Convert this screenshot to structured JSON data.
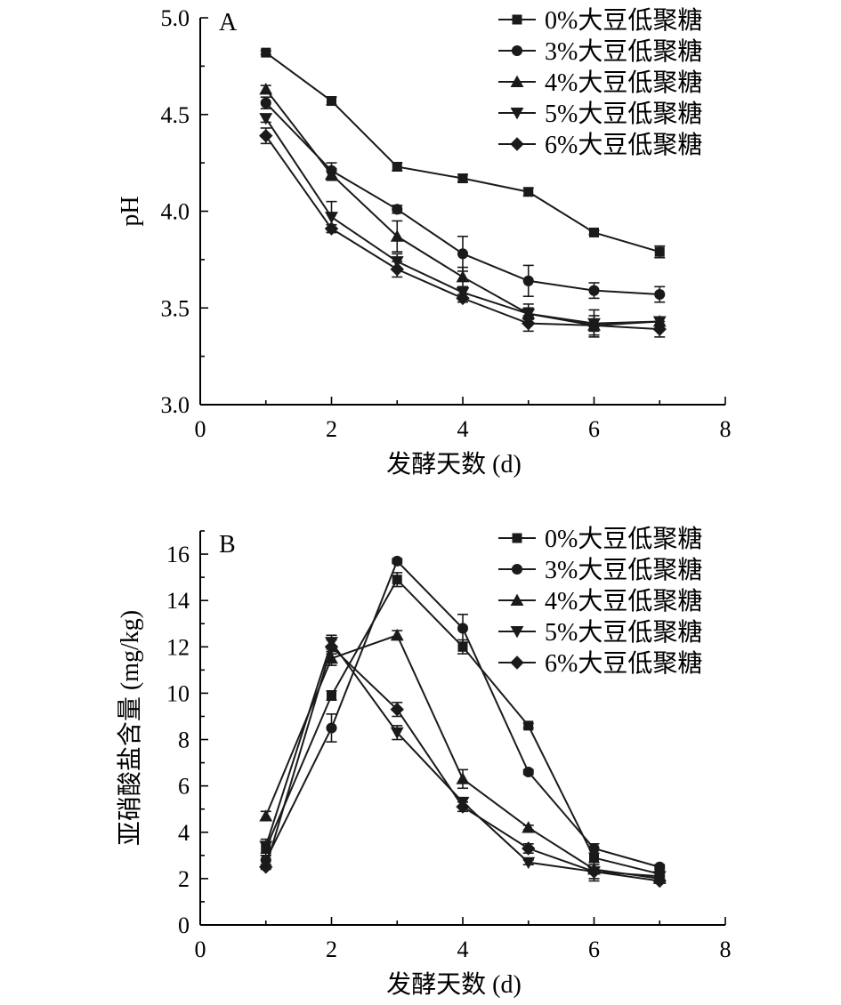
{
  "chart_data": [
    {
      "type": "line",
      "panel_label": "A",
      "xlabel": "发酵天数 (d)",
      "ylabel": "pH",
      "xlim": [
        0,
        8
      ],
      "ylim": [
        3.0,
        5.0
      ],
      "xticks": [
        0,
        2,
        4,
        6,
        8
      ],
      "yticks": [
        3.0,
        3.5,
        4.0,
        4.5,
        5.0
      ],
      "ytick_labels": [
        "3.0",
        "3.5",
        "4.0",
        "4.5",
        "5.0"
      ],
      "grid": false,
      "legend_position": "top-right",
      "x": [
        1,
        2,
        3,
        4,
        5,
        6,
        7
      ],
      "series": [
        {
          "name": "0%大豆低聚糖",
          "marker": "square",
          "values": [
            4.82,
            4.57,
            4.23,
            4.17,
            4.1,
            3.89,
            3.79
          ],
          "errors": [
            0.01,
            0.02,
            0.02,
            0.02,
            0.02,
            0.01,
            0.03
          ]
        },
        {
          "name": "3%大豆低聚糖",
          "marker": "circle",
          "values": [
            4.56,
            4.21,
            4.01,
            3.78,
            3.64,
            3.59,
            3.57
          ],
          "errors": [
            0.03,
            0.04,
            0.02,
            0.09,
            0.08,
            0.04,
            0.04
          ]
        },
        {
          "name": "4%大豆低聚糖",
          "marker": "triangle-up",
          "values": [
            4.63,
            4.19,
            3.87,
            3.66,
            3.47,
            3.41,
            3.43
          ],
          "errors": [
            0.02,
            0.03,
            0.08,
            0.05,
            0.03,
            0.03,
            0.02
          ]
        },
        {
          "name": "5%大豆低聚糖",
          "marker": "triangle-down",
          "values": [
            4.48,
            3.97,
            3.74,
            3.58,
            3.47,
            3.42,
            3.43
          ],
          "errors": [
            0.02,
            0.08,
            0.04,
            0.03,
            0.05,
            0.07,
            0.02
          ]
        },
        {
          "name": "6%大豆低聚糖",
          "marker": "diamond",
          "values": [
            4.39,
            3.91,
            3.7,
            3.55,
            3.42,
            3.41,
            3.39
          ],
          "errors": [
            0.04,
            0.02,
            0.04,
            0.02,
            0.04,
            0.05,
            0.04
          ]
        }
      ]
    },
    {
      "type": "line",
      "panel_label": "B",
      "xlabel": "发酵天数 (d)",
      "ylabel": "亚硝酸盐含量 (mg/kg)",
      "xlim": [
        0,
        8
      ],
      "ylim": [
        0,
        17
      ],
      "xticks": [
        0,
        2,
        4,
        6,
        8
      ],
      "yticks": [
        0,
        2,
        4,
        6,
        8,
        10,
        12,
        14,
        16
      ],
      "ytick_labels": [
        "0",
        "2",
        "4",
        "6",
        "8",
        "10",
        "12",
        "14",
        "16"
      ],
      "grid": false,
      "legend_position": "top-right",
      "x": [
        1,
        2,
        3,
        4,
        5,
        6,
        7
      ],
      "series": [
        {
          "name": "0%大豆低聚糖",
          "marker": "square",
          "values": [
            3.3,
            9.9,
            14.9,
            12.0,
            8.6,
            2.9,
            2.2
          ],
          "errors": [
            0.3,
            0.2,
            0.3,
            0.3,
            0.1,
            0.2,
            0.1
          ]
        },
        {
          "name": "3%大豆低聚糖",
          "marker": "circle",
          "values": [
            2.8,
            8.5,
            15.7,
            12.8,
            6.6,
            3.3,
            2.5
          ],
          "errors": [
            0.2,
            0.6,
            0.1,
            0.6,
            0.1,
            0.2,
            0.1
          ]
        },
        {
          "name": "4%大豆低聚糖",
          "marker": "triangle-up",
          "values": [
            4.7,
            11.5,
            12.5,
            6.3,
            4.2,
            2.4,
            2.0
          ],
          "errors": [
            0.2,
            0.3,
            0.2,
            0.4,
            0.1,
            0.2,
            0.1
          ]
        },
        {
          "name": "5%大豆低聚糖",
          "marker": "triangle-down",
          "values": [
            3.4,
            12.2,
            8.3,
            5.3,
            2.7,
            2.3,
            2.1
          ],
          "errors": [
            0.3,
            0.3,
            0.3,
            0.2,
            0.1,
            0.3,
            0.1
          ]
        },
        {
          "name": "6%大豆低聚糖",
          "marker": "diamond",
          "values": [
            2.5,
            12.0,
            9.3,
            5.1,
            3.3,
            2.3,
            1.9
          ],
          "errors": [
            0.1,
            0.3,
            0.3,
            0.2,
            0.2,
            0.4,
            0.1
          ]
        }
      ]
    }
  ]
}
